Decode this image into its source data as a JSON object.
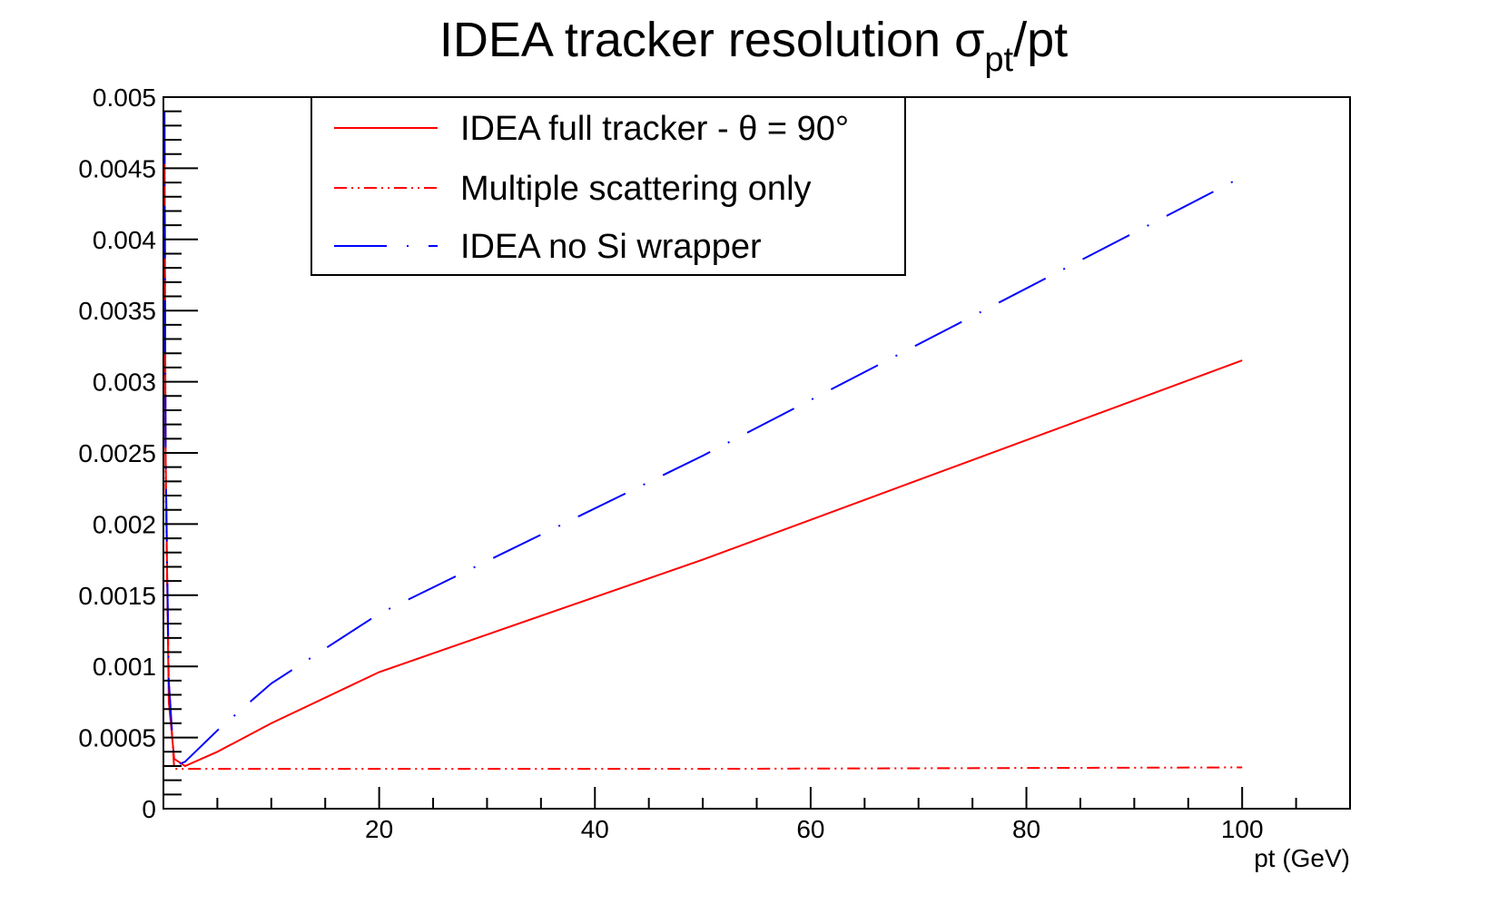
{
  "chart_data": {
    "type": "line",
    "title": "IDEA tracker resolution σ",
    "title_subscript": "pt",
    "title_tail": "/pt",
    "xlabel": "pt (GeV)",
    "ylabel": "",
    "xlim": [
      0,
      110
    ],
    "ylim": [
      0,
      0.005
    ],
    "x_ticks": [
      20,
      40,
      60,
      80,
      100
    ],
    "x_tick_labels": [
      "20",
      "40",
      "60",
      "80",
      "100"
    ],
    "y_ticks": [
      0,
      0.0005,
      0.001,
      0.0015,
      0.002,
      0.0025,
      0.003,
      0.0035,
      0.004,
      0.0045,
      0.005
    ],
    "y_tick_labels": [
      "0",
      "0.0005",
      "0.001",
      "0.0015",
      "0.002",
      "0.0025",
      "0.003",
      "0.0035",
      "0.004",
      "0.0045",
      "0.005"
    ],
    "grid": false,
    "legend_placement": "top-left",
    "series": [
      {
        "name": "IDEA full tracker - θ = 90°",
        "style": "solid",
        "color": "#ff0000",
        "x": [
          0.1,
          0.2,
          0.5,
          1,
          2,
          5,
          10,
          20,
          50,
          100
        ],
        "y": [
          0.0048,
          0.0025,
          0.00075,
          0.00035,
          0.0003,
          0.0004,
          0.0006,
          0.00096,
          0.00175,
          0.00315
        ]
      },
      {
        "name": "Multiple scattering only",
        "style": "dash-dot-dot",
        "color": "#ff0000",
        "x": [
          0.1,
          0.2,
          0.5,
          1,
          2,
          5,
          10,
          20,
          50,
          100
        ],
        "y": [
          0.0046,
          0.0023,
          0.0009,
          0.00028,
          0.00028,
          0.00028,
          0.00028,
          0.00028,
          0.00028,
          0.00029
        ]
      },
      {
        "name": "IDEA no Si wrapper",
        "style": "long-dash-dot",
        "color": "#0000ff",
        "x": [
          0.1,
          0.2,
          0.5,
          1,
          2,
          5,
          10,
          20,
          50,
          100
        ],
        "y": [
          0.0049,
          0.0025,
          0.0009,
          0.0003,
          0.00033,
          0.00055,
          0.00088,
          0.00137,
          0.00248,
          0.00444
        ]
      }
    ]
  }
}
